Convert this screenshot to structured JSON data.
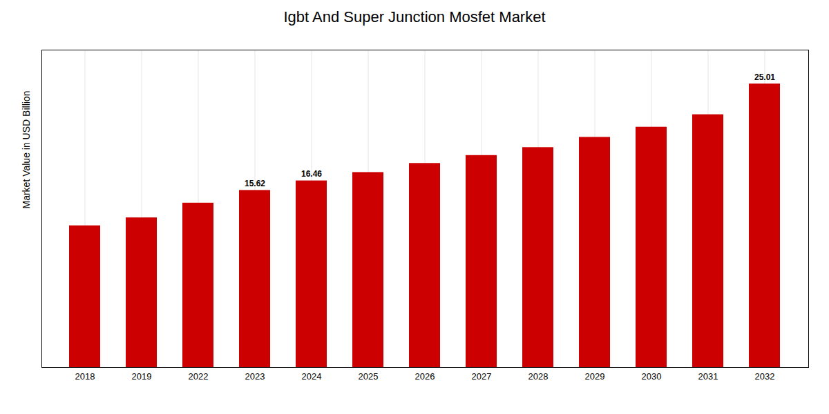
{
  "chart_data": {
    "type": "bar",
    "title": "Igbt And Super Junction Mosfet Market",
    "ylabel": "Market Value in USD Billion",
    "categories": [
      "2018",
      "2019",
      "2022",
      "2023",
      "2024",
      "2025",
      "2026",
      "2027",
      "2028",
      "2029",
      "2030",
      "2031",
      "2032"
    ],
    "values": [
      12.5,
      13.2,
      14.5,
      15.62,
      16.46,
      17.2,
      18.0,
      18.7,
      19.4,
      20.3,
      21.2,
      22.3,
      25.01
    ],
    "color": "#CC0000",
    "ylim": [
      0,
      28
    ],
    "grid": "x",
    "tick_labels": "x",
    "annotations": [
      {
        "x": "2023",
        "text": "15.62"
      },
      {
        "x": "2024",
        "text": "16.46"
      },
      {
        "x": "2032",
        "text": "25.01"
      }
    ]
  }
}
